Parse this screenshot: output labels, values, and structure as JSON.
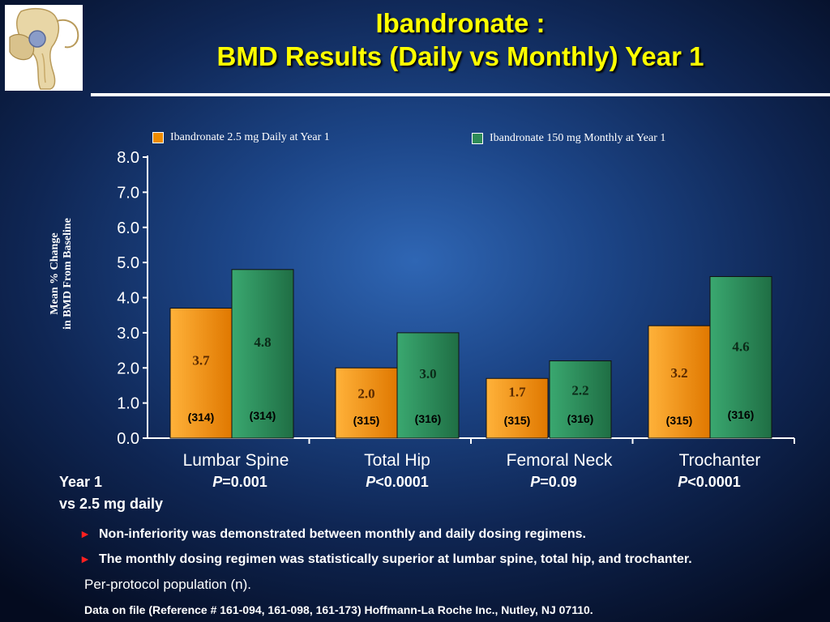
{
  "title_line1": "Ibandronate :",
  "title_line2": "BMD Results (Daily vs Monthly) Year 1",
  "colors": {
    "daily": "#f08c00",
    "monthly": "#2e8b57",
    "title": "#ffff00"
  },
  "chart_data": {
    "type": "bar",
    "title": "",
    "ylabel_line1": "Mean % Change",
    "ylabel_line2": "in BMD From Baseline",
    "xlabel": "",
    "ylim": [
      0,
      8
    ],
    "yticks": [
      "0.0",
      "1.0",
      "2.0",
      "3.0",
      "4.0",
      "5.0",
      "6.0",
      "7.0",
      "8.0"
    ],
    "legend_position": "top",
    "categories": [
      "Lumbar Spine",
      "Total Hip",
      "Femoral Neck",
      "Trochanter"
    ],
    "series": [
      {
        "name": "Ibandronate 2.5 mg Daily at Year 1",
        "values": [
          3.7,
          2.0,
          1.7,
          3.2
        ],
        "labels": [
          "3.7",
          "2.0",
          "1.7",
          "3.2"
        ],
        "n": [
          "(314)",
          "(315)",
          "(315)",
          "(315)"
        ]
      },
      {
        "name": "Ibandronate 150 mg Monthly at Year 1",
        "values": [
          4.8,
          3.0,
          2.2,
          4.6
        ],
        "labels": [
          "4.8",
          "3.0",
          "2.2",
          "4.6"
        ],
        "n": [
          "(314)",
          "(316)",
          "(316)",
          "(316)"
        ]
      }
    ]
  },
  "comparison": {
    "label_line1": "Year 1",
    "label_line2": "vs 2.5 mg daily",
    "pvalues": [
      {
        "p": "P",
        "rest": "=0.001"
      },
      {
        "p": "P",
        "rest": "<0.0001"
      },
      {
        "p": "P",
        "rest": "=0.09"
      },
      {
        "p": "P",
        "rest": "<0.0001"
      }
    ]
  },
  "bullets": [
    "Non-inferiority was demonstrated between monthly and daily dosing regimens.",
    "The monthly dosing regimen was statistically superior at lumbar spine, total hip, and trochanter."
  ],
  "per_protocol_note": "Per-protocol population (n).",
  "footnote": "Data on file (Reference # 161-094, 161-098, 161-173) Hoffmann-La Roche Inc., Nutley, NJ 07110."
}
